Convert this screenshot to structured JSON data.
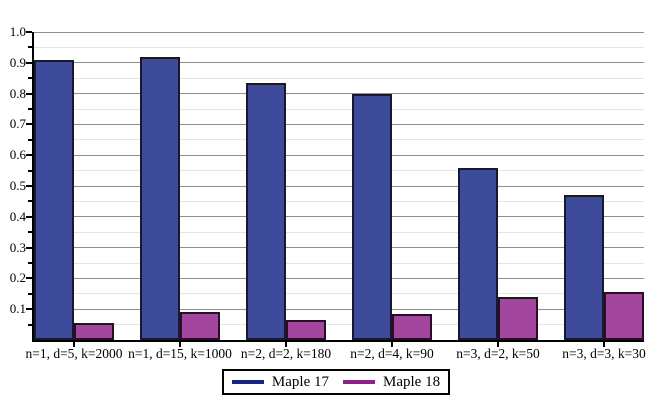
{
  "chart_data": {
    "type": "bar",
    "title": "",
    "xlabel": "",
    "ylabel": "",
    "categories": [
      "n=1, d=5, k=2000",
      "n=1, d=15, k=1000",
      "n=2, d=2, k=180",
      "n=2, d=4, k=90",
      "n=3, d=2, k=50",
      "n=3, d=3, k=30"
    ],
    "series": [
      {
        "name": "Maple 17",
        "color": "#3e4b9b",
        "outline": "#181830",
        "legend_color": "#1b2383",
        "values": [
          0.91,
          0.92,
          0.835,
          0.8,
          0.56,
          0.47
        ]
      },
      {
        "name": "Maple 18",
        "color": "#a3469e",
        "outline": "#2a0e28",
        "legend_color": "#8e2189",
        "values": [
          0.055,
          0.09,
          0.065,
          0.085,
          0.14,
          0.155
        ]
      }
    ],
    "ylim": [
      0,
      1.0
    ],
    "ytick_labels": [
      "0.1",
      "0.2",
      "0.3",
      "0.4",
      "0.5",
      "0.6",
      "0.7",
      "0.8",
      "0.9",
      "1.0"
    ],
    "yminor_step": 0.05,
    "grid": {
      "major_color": "#8f8f8f",
      "minor_color": "#e4e4e4"
    },
    "axis_color": "#000000",
    "legend_position": "bottom-center",
    "background": "#ffffff"
  }
}
